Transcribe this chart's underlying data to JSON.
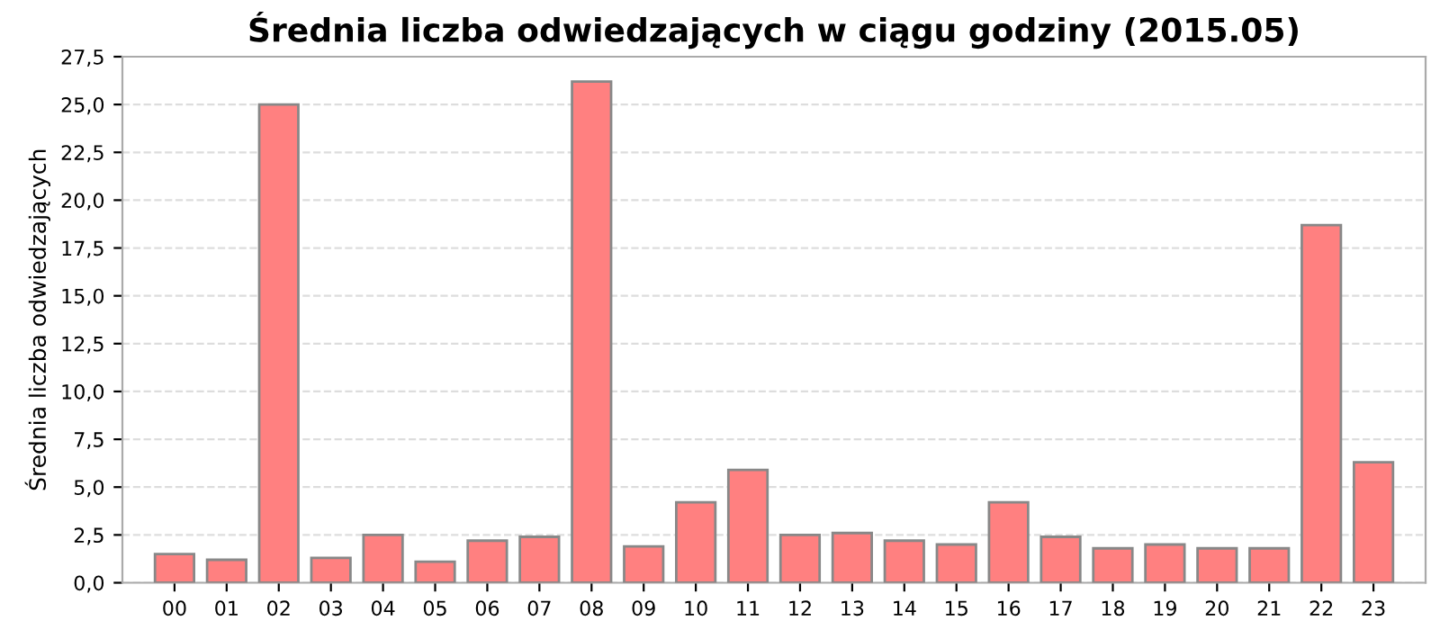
{
  "chart_data": {
    "type": "bar",
    "title": "Średnia liczba odwiedzających w ciągu godziny (2015.05)",
    "ylabel": "Średnia liczba odwiedzających",
    "categories": [
      "00",
      "01",
      "02",
      "03",
      "04",
      "05",
      "06",
      "07",
      "08",
      "09",
      "10",
      "11",
      "12",
      "13",
      "14",
      "15",
      "16",
      "17",
      "18",
      "19",
      "20",
      "21",
      "22",
      "23"
    ],
    "values": [
      1.5,
      1.2,
      25.0,
      1.3,
      2.5,
      1.1,
      2.2,
      2.4,
      26.2,
      1.9,
      4.2,
      5.9,
      2.5,
      2.6,
      2.2,
      2.0,
      4.2,
      2.4,
      1.8,
      2.0,
      1.8,
      1.8,
      18.7,
      6.3
    ],
    "color": "#ff8080",
    "ylim": [
      0,
      27.5
    ],
    "yticks": [
      {
        "value": 0,
        "label": "0,0"
      },
      {
        "value": 2.5,
        "label": "2,5"
      },
      {
        "value": 5,
        "label": "5,0"
      },
      {
        "value": 7.5,
        "label": "7,5"
      },
      {
        "value": 10,
        "label": "10,0"
      },
      {
        "value": 12.5,
        "label": "12,5"
      },
      {
        "value": 15,
        "label": "15,0"
      },
      {
        "value": 17.5,
        "label": "17,5"
      },
      {
        "value": 20,
        "label": "20,0"
      },
      {
        "value": 22.5,
        "label": "22,5"
      },
      {
        "value": 25,
        "label": "25,0"
      },
      {
        "value": 27.5,
        "label": "27,5"
      }
    ],
    "grid": "y",
    "legend": false
  }
}
